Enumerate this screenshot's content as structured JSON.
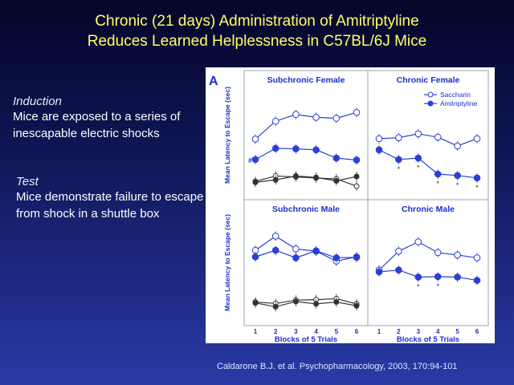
{
  "title": {
    "line1": "Chronic (21 days) Administration of Amitriptyline",
    "line2": "Reduces Learned Helplessness in C57BL/6J Mice"
  },
  "induction": {
    "heading": "Induction",
    "body": "Mice are exposed to a series of inescapable electric shocks"
  },
  "test": {
    "heading": "Test",
    "body": "Mice demonstrate failure to escape from shock in a shuttle box"
  },
  "citation": "Caldarone B.J. et al. Psychopharmacology, 2003, 170:94-101",
  "chart_data": {
    "type": "line",
    "panel_label": "A",
    "ylabel": "Mean Latency to Escape (sec)",
    "xlabel": "Blocks of 5 Trials",
    "x": [
      1,
      2,
      3,
      4,
      5,
      6
    ],
    "ylim": [
      0,
      22
    ],
    "legend": {
      "placement": "top-right",
      "entries": [
        "Saccharin",
        "Amitriptyline"
      ]
    },
    "colors": {
      "saccharin": "#2b3fd6",
      "amitriptyline": "#1a2ecc",
      "control": "#333333"
    },
    "panels": [
      {
        "name": "Subchronic Female",
        "series": [
          {
            "name": "Saccharin",
            "values": [
              11.5,
              15.2,
              16.6,
              16.0,
              15.8,
              17.0
            ]
          },
          {
            "name": "Amitriptyline",
            "values": [
              7.3,
              9.6,
              9.5,
              9.3,
              7.6,
              7.2
            ]
          },
          {
            "name": "Saccharin",
            "values": [
              2.8,
              3.9,
              3.7,
              3.5,
              3.3,
              1.8
            ]
          },
          {
            "name": "Amitriptyline",
            "values": [
              2.6,
              3.1,
              3.9,
              3.6,
              2.9,
              3.8
            ]
          }
        ],
        "annotations": [
          "#"
        ]
      },
      {
        "name": "Chronic Female",
        "series": [
          {
            "name": "Saccharin",
            "values": [
              11.6,
              11.8,
              12.6,
              11.9,
              10.1,
              11.6
            ]
          },
          {
            "name": "Amitriptyline",
            "values": [
              9.3,
              7.3,
              7.6,
              4.3,
              4.0,
              3.5
            ]
          }
        ],
        "annotations": [
          "*",
          "*",
          "*",
          "*",
          "*"
        ]
      },
      {
        "name": "Subchronic Male",
        "series": [
          {
            "name": "Saccharin",
            "values": [
              15.0,
              18.0,
              15.3,
              14.8,
              12.7,
              13.6
            ]
          },
          {
            "name": "Amitriptyline",
            "values": [
              13.6,
              15.0,
              13.4,
              14.9,
              13.4,
              13.5
            ]
          },
          {
            "name": "Saccharin",
            "values": [
              4.0,
              3.7,
              4.4,
              4.5,
              4.7,
              3.6
            ]
          },
          {
            "name": "Amitriptyline",
            "values": [
              3.8,
              3.0,
              4.1,
              3.6,
              4.0,
              3.2
            ]
          }
        ],
        "annotations": []
      },
      {
        "name": "Chronic Male",
        "series": [
          {
            "name": "Saccharin",
            "values": [
              10.8,
              14.8,
              16.8,
              14.5,
              14.0,
              13.4
            ]
          },
          {
            "name": "Amitriptyline",
            "values": [
              10.4,
              10.8,
              9.3,
              9.4,
              9.3,
              8.6
            ]
          }
        ],
        "annotations": [
          "*",
          "*"
        ]
      }
    ]
  }
}
